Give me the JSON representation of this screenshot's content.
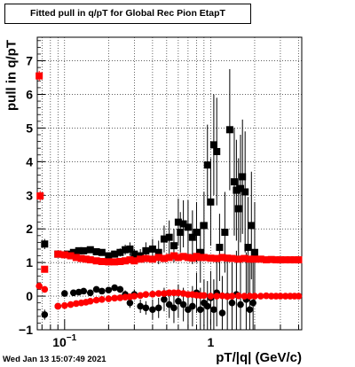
{
  "chart_data": {
    "type": "scatter",
    "title": "Fitted pull in q/pT for Global Rec Pion EtapT",
    "xlabel": "pT/|q| (GeV/c)",
    "ylabel": "pull in q/pT",
    "x_scale": "log",
    "xlim": [
      0.065,
      4.2
    ],
    "ylim": [
      -1,
      7.7
    ],
    "grid": true,
    "y_ticks": [
      -1,
      0,
      1,
      2,
      3,
      4,
      5,
      6,
      7
    ],
    "y_tick_labels": [
      "−1",
      "0",
      "1",
      "2",
      "3",
      "4",
      "5",
      "6",
      "7"
    ],
    "x_tick_labels": [
      {
        "value": 0.1,
        "base": "10",
        "exp": "−1"
      },
      {
        "value": 1,
        "base": "1",
        "exp": ""
      }
    ],
    "series": [
      {
        "color": "#000000",
        "marker": "square",
        "points": [
          [
            0.073,
            1.55,
            0.15
          ],
          [
            0.09,
            1.25,
            0.05
          ],
          [
            0.105,
            1.25,
            0.05
          ],
          [
            0.115,
            1.3,
            0.06
          ],
          [
            0.125,
            1.35,
            0.06
          ],
          [
            0.135,
            1.35,
            0.06
          ],
          [
            0.15,
            1.38,
            0.07
          ],
          [
            0.165,
            1.32,
            0.07
          ],
          [
            0.18,
            1.3,
            0.08
          ],
          [
            0.2,
            1.2,
            0.08
          ],
          [
            0.22,
            1.25,
            0.1
          ],
          [
            0.24,
            1.3,
            0.12
          ],
          [
            0.26,
            1.38,
            0.15
          ],
          [
            0.28,
            1.4,
            0.2
          ],
          [
            0.3,
            1.25,
            0.15
          ],
          [
            0.33,
            1.2,
            0.2
          ],
          [
            0.36,
            1.35,
            0.25
          ],
          [
            0.4,
            1.4,
            0.3
          ],
          [
            0.44,
            1.3,
            0.35
          ],
          [
            0.48,
            1.7,
            0.4
          ],
          [
            0.52,
            1.75,
            0.5
          ],
          [
            0.56,
            1.5,
            0.5
          ],
          [
            0.6,
            2.2,
            0.7
          ],
          [
            0.62,
            1.9,
            0.6
          ],
          [
            0.65,
            2.15,
            0.7
          ],
          [
            0.7,
            2.05,
            0.8
          ],
          [
            0.75,
            1.75,
            0.8
          ],
          [
            0.8,
            1.9,
            0.9
          ],
          [
            0.85,
            1.3,
            0.9
          ],
          [
            0.9,
            2.1,
            1.0
          ],
          [
            0.95,
            3.9,
            1.2
          ],
          [
            1.0,
            2.8,
            1.3
          ],
          [
            1.05,
            4.5,
            1.5
          ],
          [
            1.1,
            4.3,
            1.6
          ],
          [
            1.15,
            1.45,
            1.0
          ],
          [
            1.25,
            1.9,
            1.2
          ],
          [
            1.35,
            4.95,
            1.8
          ],
          [
            1.45,
            3.4,
            1.6
          ],
          [
            1.5,
            3.15,
            1.5
          ],
          [
            1.55,
            2.6,
            1.5
          ],
          [
            1.6,
            3.2,
            1.6
          ],
          [
            1.65,
            3.55,
            1.7
          ],
          [
            1.72,
            3.1,
            1.8
          ],
          [
            1.8,
            1.45,
            1.5
          ],
          [
            1.9,
            2.1,
            1.6
          ],
          [
            2.0,
            1.3,
            1.5
          ]
        ]
      },
      {
        "color": "#000000",
        "marker": "circle",
        "points": [
          [
            0.073,
            -0.55,
            0.15
          ],
          [
            0.09,
            -0.3,
            0.05
          ],
          [
            0.1,
            0.08,
            0.05
          ],
          [
            0.115,
            0.1,
            0.05
          ],
          [
            0.125,
            0.12,
            0.05
          ],
          [
            0.135,
            0.15,
            0.05
          ],
          [
            0.15,
            0.1,
            0.06
          ],
          [
            0.165,
            0.2,
            0.07
          ],
          [
            0.18,
            0.15,
            0.07
          ],
          [
            0.2,
            0.18,
            0.08
          ],
          [
            0.22,
            0.25,
            0.08
          ],
          [
            0.24,
            0.2,
            0.1
          ],
          [
            0.26,
            0.05,
            0.12
          ],
          [
            0.28,
            -0.2,
            0.15
          ],
          [
            0.3,
            0.05,
            0.15
          ],
          [
            0.33,
            -0.3,
            0.2
          ],
          [
            0.36,
            -0.35,
            0.2
          ],
          [
            0.4,
            -0.4,
            0.3
          ],
          [
            0.44,
            -0.35,
            0.3
          ],
          [
            0.48,
            -0.1,
            0.35
          ],
          [
            0.52,
            -0.25,
            0.4
          ],
          [
            0.56,
            -0.35,
            0.45
          ],
          [
            0.6,
            -0.15,
            0.5
          ],
          [
            0.65,
            -0.25,
            0.5
          ],
          [
            0.7,
            -0.4,
            0.55
          ],
          [
            0.75,
            -0.3,
            0.6
          ],
          [
            0.8,
            0.1,
            0.6
          ],
          [
            0.85,
            -0.4,
            0.65
          ],
          [
            0.9,
            -0.2,
            0.7
          ],
          [
            0.95,
            -0.3,
            0.75
          ],
          [
            1.0,
            -0.05,
            0.8
          ],
          [
            1.05,
            -0.4,
            0.9
          ],
          [
            1.1,
            0.1,
            1.0
          ],
          [
            1.2,
            -0.5,
            1.1
          ],
          [
            1.3,
            0.0,
            1.1
          ],
          [
            1.4,
            -0.2,
            1.2
          ],
          [
            1.5,
            0.05,
            1.3
          ],
          [
            1.6,
            -0.25,
            1.3
          ],
          [
            1.75,
            -0.1,
            1.4
          ],
          [
            1.85,
            -0.4,
            1.4
          ],
          [
            1.95,
            -0.2,
            1.5
          ]
        ]
      },
      {
        "color": "#ff0000",
        "marker": "square",
        "points": [
          [
            0.067,
            6.55,
            0.15
          ],
          [
            0.068,
            2.98,
            0.15
          ],
          [
            0.073,
            0.8,
            0.08
          ],
          [
            0.09,
            1.25,
            0.04
          ],
          [
            0.1,
            1.23,
            0.04
          ],
          [
            0.11,
            1.2,
            0.04
          ],
          [
            0.12,
            1.15,
            0.04
          ],
          [
            0.13,
            1.12,
            0.04
          ],
          [
            0.14,
            1.1,
            0.04
          ],
          [
            0.15,
            1.08,
            0.04
          ],
          [
            0.165,
            1.05,
            0.04
          ],
          [
            0.18,
            1.03,
            0.04
          ],
          [
            0.2,
            1.02,
            0.04
          ],
          [
            0.22,
            1.02,
            0.04
          ],
          [
            0.24,
            1.03,
            0.04
          ],
          [
            0.26,
            1.05,
            0.04
          ],
          [
            0.28,
            1.08,
            0.05
          ],
          [
            0.3,
            1.05,
            0.05
          ],
          [
            0.33,
            1.1,
            0.05
          ],
          [
            0.36,
            1.12,
            0.05
          ],
          [
            0.4,
            1.1,
            0.05
          ],
          [
            0.44,
            1.15,
            0.05
          ],
          [
            0.48,
            1.12,
            0.05
          ],
          [
            0.52,
            1.15,
            0.05
          ],
          [
            0.56,
            1.2,
            0.05
          ],
          [
            0.6,
            1.15,
            0.05
          ],
          [
            0.65,
            1.18,
            0.05
          ],
          [
            0.7,
            1.15,
            0.05
          ],
          [
            0.75,
            1.13,
            0.05
          ],
          [
            0.8,
            1.18,
            0.05
          ],
          [
            0.85,
            1.15,
            0.05
          ],
          [
            0.9,
            1.15,
            0.05
          ],
          [
            1.0,
            1.13,
            0.05
          ],
          [
            1.1,
            1.12,
            0.05
          ],
          [
            1.2,
            1.15,
            0.05
          ],
          [
            1.3,
            1.13,
            0.05
          ],
          [
            1.4,
            1.12,
            0.05
          ],
          [
            1.55,
            1.1,
            0.05
          ],
          [
            1.7,
            1.12,
            0.05
          ],
          [
            1.85,
            1.1,
            0.05
          ],
          [
            2.0,
            1.1,
            0.05
          ],
          [
            2.2,
            1.1,
            0.05
          ],
          [
            2.4,
            1.08,
            0.05
          ],
          [
            2.6,
            1.09,
            0.05
          ],
          [
            2.8,
            1.08,
            0.05
          ],
          [
            3.0,
            1.08,
            0.05
          ],
          [
            3.25,
            1.08,
            0.05
          ],
          [
            3.5,
            1.08,
            0.05
          ],
          [
            3.75,
            1.08,
            0.05
          ],
          [
            4.0,
            1.08,
            0.05
          ]
        ]
      },
      {
        "color": "#ff0000",
        "marker": "circle",
        "points": [
          [
            0.067,
            0.3,
            0.1
          ],
          [
            0.073,
            0.2,
            0.05
          ],
          [
            0.09,
            -0.3,
            0.04
          ],
          [
            0.1,
            -0.28,
            0.04
          ],
          [
            0.11,
            -0.25,
            0.04
          ],
          [
            0.12,
            -0.22,
            0.04
          ],
          [
            0.13,
            -0.2,
            0.04
          ],
          [
            0.14,
            -0.18,
            0.04
          ],
          [
            0.15,
            -0.15,
            0.04
          ],
          [
            0.165,
            -0.12,
            0.04
          ],
          [
            0.18,
            -0.1,
            0.04
          ],
          [
            0.2,
            -0.08,
            0.04
          ],
          [
            0.22,
            -0.06,
            0.04
          ],
          [
            0.24,
            -0.05,
            0.04
          ],
          [
            0.26,
            -0.03,
            0.04
          ],
          [
            0.28,
            -0.02,
            0.05
          ],
          [
            0.3,
            0.0,
            0.05
          ],
          [
            0.33,
            0.02,
            0.05
          ],
          [
            0.36,
            0.05,
            0.05
          ],
          [
            0.4,
            0.06,
            0.05
          ],
          [
            0.44,
            0.08,
            0.05
          ],
          [
            0.48,
            0.08,
            0.05
          ],
          [
            0.52,
            0.1,
            0.05
          ],
          [
            0.56,
            0.1,
            0.05
          ],
          [
            0.6,
            0.1,
            0.05
          ],
          [
            0.65,
            0.08,
            0.05
          ],
          [
            0.7,
            0.05,
            0.05
          ],
          [
            0.75,
            0.05,
            0.05
          ],
          [
            0.8,
            0.03,
            0.05
          ],
          [
            0.85,
            0.02,
            0.05
          ],
          [
            0.9,
            0.02,
            0.05
          ],
          [
            1.0,
            0.0,
            0.05
          ],
          [
            1.1,
            0.0,
            0.05
          ],
          [
            1.2,
            0.01,
            0.05
          ],
          [
            1.3,
            -0.01,
            0.05
          ],
          [
            1.4,
            0.0,
            0.05
          ],
          [
            1.55,
            0.01,
            0.05
          ],
          [
            1.7,
            0.0,
            0.05
          ],
          [
            1.85,
            0.0,
            0.05
          ],
          [
            2.0,
            0.0,
            0.05
          ],
          [
            2.2,
            0.0,
            0.05
          ],
          [
            2.4,
            0.01,
            0.05
          ],
          [
            2.6,
            0.0,
            0.05
          ],
          [
            2.8,
            0.0,
            0.05
          ],
          [
            3.0,
            0.0,
            0.05
          ],
          [
            3.25,
            0.0,
            0.05
          ],
          [
            3.5,
            0.0,
            0.05
          ],
          [
            3.75,
            0.0,
            0.05
          ],
          [
            4.0,
            0.0,
            0.05
          ]
        ]
      }
    ]
  },
  "timestamp": "Wed Jan 13 15:07:49 2021"
}
